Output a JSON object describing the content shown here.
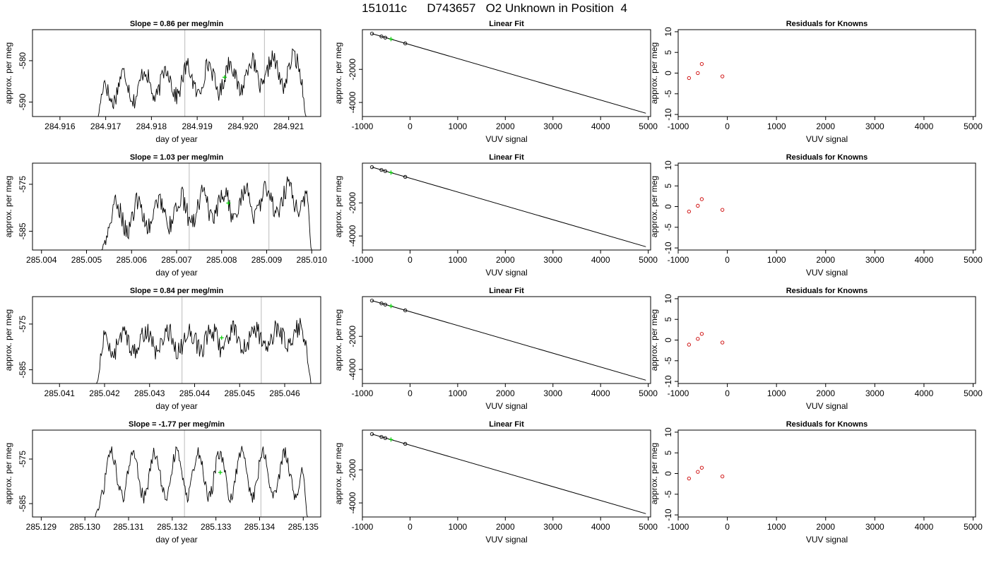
{
  "page_title": "151011c      D743657   O2 Unknown in Position  4",
  "colors": {
    "series": "#000000",
    "marker": "#00cc00",
    "residual": "#cc0000",
    "vline": "#bbbbbb"
  },
  "chart_data": [
    {
      "type": "line",
      "title": "Slope =  0.86  per meg/min",
      "xlabel": "day of year",
      "ylabel": "approx. per meg",
      "xlim": [
        284.9154,
        284.9217
      ],
      "ylim": [
        -593.5,
        -572.5
      ],
      "xticks": [
        "284.916",
        "284.917",
        "284.918",
        "284.919",
        "284.920",
        "284.921"
      ],
      "yticks": [
        "-580",
        "-590"
      ],
      "yticks_values": [
        -580,
        -590
      ],
      "x_start": 284.9168,
      "x_end": 284.9214,
      "y_center": -584.5,
      "y_wave_amp": 3.5,
      "y_trend": 5,
      "y_noise": 2.2,
      "vlines": [
        284.91873,
        284.92047
      ],
      "marker": {
        "x": 284.9196,
        "y": -584
      }
    },
    {
      "type": "scatter",
      "title": "Linear Fit",
      "xlabel": "VUV signal",
      "ylabel": "approx. per meg",
      "xlim": [
        -1000,
        5050
      ],
      "ylim": [
        -4850,
        400
      ],
      "xticks": [
        "-1000",
        "0",
        "1000",
        "2000",
        "3000",
        "4000",
        "5000"
      ],
      "yticks": [
        "-2000",
        "-4000"
      ],
      "yticks_values": [
        -2000,
        -4000
      ],
      "line": {
        "x": [
          -800,
          4950
        ],
        "y": [
          160,
          -4650
        ]
      },
      "points": [
        {
          "x": -800,
          "y": 160
        },
        {
          "x": -600,
          "y": -10
        },
        {
          "x": -520,
          "y": -80
        },
        {
          "x": -100,
          "y": -430
        }
      ],
      "marker": {
        "x": -400,
        "y": -170
      }
    },
    {
      "type": "scatter",
      "title": "Residuals for Knowns",
      "xlabel": "VUV signal",
      "ylabel": "approx. per meg",
      "xlim": [
        -1000,
        5050
      ],
      "ylim": [
        -10.5,
        10.5
      ],
      "xticks": [
        "-1000",
        "0",
        "1000",
        "2000",
        "3000",
        "4000",
        "5000"
      ],
      "yticks": [
        "10",
        "5",
        "0",
        "-5",
        "-10"
      ],
      "yticks_values": [
        10,
        5,
        0,
        -5,
        -10
      ],
      "points": [
        {
          "x": -780,
          "y": -1.2
        },
        {
          "x": -600,
          "y": 0
        },
        {
          "x": -520,
          "y": 2.2
        },
        {
          "x": -100,
          "y": -0.8
        }
      ]
    },
    {
      "type": "line",
      "title": "Slope =  1.03  per meg/min",
      "xlabel": "day of year",
      "ylabel": "approx. per meg",
      "xlim": [
        285.0038,
        285.0102
      ],
      "ylim": [
        -589,
        -570.5
      ],
      "xticks": [
        "285.004",
        "285.005",
        "285.006",
        "285.007",
        "285.008",
        "285.009",
        "285.010"
      ],
      "yticks": [
        "-575",
        "-585"
      ],
      "yticks_values": [
        -575,
        -585
      ],
      "x_start": 285.0053,
      "x_end": 285.01,
      "y_center": -580,
      "y_wave_amp": 3,
      "y_trend": 5,
      "y_noise": 2.2,
      "vlines": [
        285.00728,
        285.00905
      ],
      "marker": {
        "x": 285.00815,
        "y": -579
      }
    },
    {
      "type": "scatter",
      "title": "Linear Fit",
      "xlabel": "VUV signal",
      "ylabel": "approx. per meg",
      "xlim": [
        -1000,
        5050
      ],
      "ylim": [
        -4850,
        400
      ],
      "xticks": [
        "-1000",
        "0",
        "1000",
        "2000",
        "3000",
        "4000",
        "5000"
      ],
      "yticks": [
        "-2000",
        "-4000"
      ],
      "yticks_values": [
        -2000,
        -4000
      ],
      "line": {
        "x": [
          -800,
          4950
        ],
        "y": [
          160,
          -4650
        ]
      },
      "points": [
        {
          "x": -800,
          "y": 160
        },
        {
          "x": -600,
          "y": -10
        },
        {
          "x": -520,
          "y": -80
        },
        {
          "x": -100,
          "y": -430
        }
      ],
      "marker": {
        "x": -400,
        "y": -170
      }
    },
    {
      "type": "scatter",
      "title": "Residuals for Knowns",
      "xlabel": "VUV signal",
      "ylabel": "approx. per meg",
      "xlim": [
        -1000,
        5050
      ],
      "ylim": [
        -10.5,
        10.5
      ],
      "xticks": [
        "-1000",
        "0",
        "1000",
        "2000",
        "3000",
        "4000",
        "5000"
      ],
      "yticks": [
        "10",
        "5",
        "0",
        "-5",
        "-10"
      ],
      "yticks_values": [
        10,
        5,
        0,
        -5,
        -10
      ],
      "points": [
        {
          "x": -780,
          "y": -1.2
        },
        {
          "x": -600,
          "y": 0.2
        },
        {
          "x": -520,
          "y": 1.8
        },
        {
          "x": -100,
          "y": -0.8
        }
      ]
    },
    {
      "type": "line",
      "title": "Slope =  0.84  per meg/min",
      "xlabel": "day of year",
      "ylabel": "approx. per meg",
      "xlim": [
        285.0404,
        285.0468
      ],
      "ylim": [
        -588,
        -569
      ],
      "xticks": [
        "285.041",
        "285.042",
        "285.043",
        "285.044",
        "285.045",
        "285.046"
      ],
      "yticks": [
        "-575",
        "-585"
      ],
      "yticks_values": [
        -575,
        -585
      ],
      "x_start": 285.0418,
      "x_end": 285.0466,
      "y_center": -578.5,
      "y_wave_amp": 2.2,
      "y_trend": 1.5,
      "y_noise": 2.2,
      "vlines": [
        285.04372,
        285.04548
      ],
      "marker": {
        "x": 285.0446,
        "y": -578
      }
    },
    {
      "type": "scatter",
      "title": "Linear Fit",
      "xlabel": "VUV signal",
      "ylabel": "approx. per meg",
      "xlim": [
        -1000,
        5050
      ],
      "ylim": [
        -4850,
        400
      ],
      "xticks": [
        "-1000",
        "0",
        "1000",
        "2000",
        "3000",
        "4000",
        "5000"
      ],
      "yticks": [
        "-2000",
        "-4000"
      ],
      "yticks_values": [
        -2000,
        -4000
      ],
      "line": {
        "x": [
          -800,
          4950
        ],
        "y": [
          160,
          -4650
        ]
      },
      "points": [
        {
          "x": -800,
          "y": 160
        },
        {
          "x": -600,
          "y": -10
        },
        {
          "x": -520,
          "y": -80
        },
        {
          "x": -100,
          "y": -430
        }
      ],
      "marker": {
        "x": -400,
        "y": -170
      }
    },
    {
      "type": "scatter",
      "title": "Residuals for Knowns",
      "xlabel": "VUV signal",
      "ylabel": "approx. per meg",
      "xlim": [
        -1000,
        5050
      ],
      "ylim": [
        -10.5,
        10.5
      ],
      "xticks": [
        "-1000",
        "0",
        "1000",
        "2000",
        "3000",
        "4000",
        "5000"
      ],
      "yticks": [
        "10",
        "5",
        "0",
        "-5",
        "-10"
      ],
      "yticks_values": [
        10,
        5,
        0,
        -5,
        -10
      ],
      "points": [
        {
          "x": -780,
          "y": -1.1
        },
        {
          "x": -600,
          "y": 0.3
        },
        {
          "x": -520,
          "y": 1.5
        },
        {
          "x": -100,
          "y": -0.6
        }
      ]
    },
    {
      "type": "line",
      "title": "Slope =  -1.77  per meg/min",
      "xlabel": "day of year",
      "ylabel": "approx. per meg",
      "xlim": [
        285.1288,
        285.1354
      ],
      "ylim": [
        -588,
        -568.5
      ],
      "xticks": [
        "285.129",
        "285.130",
        "285.131",
        "285.132",
        "285.133",
        "285.134",
        "285.135"
      ],
      "yticks": [
        "-575",
        "-585"
      ],
      "yticks_values": [
        -575,
        -585
      ],
      "x_start": 285.1302,
      "x_end": 285.1351,
      "y_center": -578.5,
      "y_wave_amp": 5,
      "y_trend": 0,
      "y_noise": 1.5,
      "vlines": [
        285.13228,
        285.13403
      ],
      "marker": {
        "x": 285.1331,
        "y": -578
      }
    },
    {
      "type": "scatter",
      "title": "Linear Fit",
      "xlabel": "VUV signal",
      "ylabel": "approx. per meg",
      "xlim": [
        -1000,
        5050
      ],
      "ylim": [
        -4850,
        400
      ],
      "xticks": [
        "-1000",
        "0",
        "1000",
        "2000",
        "3000",
        "4000",
        "5000"
      ],
      "yticks": [
        "-2000",
        "-4000"
      ],
      "yticks_values": [
        -2000,
        -4000
      ],
      "line": {
        "x": [
          -800,
          4950
        ],
        "y": [
          160,
          -4650
        ]
      },
      "points": [
        {
          "x": -800,
          "y": 160
        },
        {
          "x": -600,
          "y": -10
        },
        {
          "x": -520,
          "y": -80
        },
        {
          "x": -100,
          "y": -430
        }
      ],
      "marker": {
        "x": -400,
        "y": -170
      }
    },
    {
      "type": "scatter",
      "title": "Residuals for Knowns",
      "xlabel": "VUV signal",
      "ylabel": "approx. per meg",
      "xlim": [
        -1000,
        5050
      ],
      "ylim": [
        -10.5,
        10.5
      ],
      "xticks": [
        "-1000",
        "0",
        "1000",
        "2000",
        "3000",
        "4000",
        "5000"
      ],
      "yticks": [
        "10",
        "5",
        "0",
        "-5",
        "-10"
      ],
      "yticks_values": [
        10,
        5,
        0,
        -5,
        -10
      ],
      "points": [
        {
          "x": -780,
          "y": -1.2
        },
        {
          "x": -600,
          "y": 0.4
        },
        {
          "x": -520,
          "y": 1.4
        },
        {
          "x": -100,
          "y": -0.7
        }
      ]
    }
  ]
}
